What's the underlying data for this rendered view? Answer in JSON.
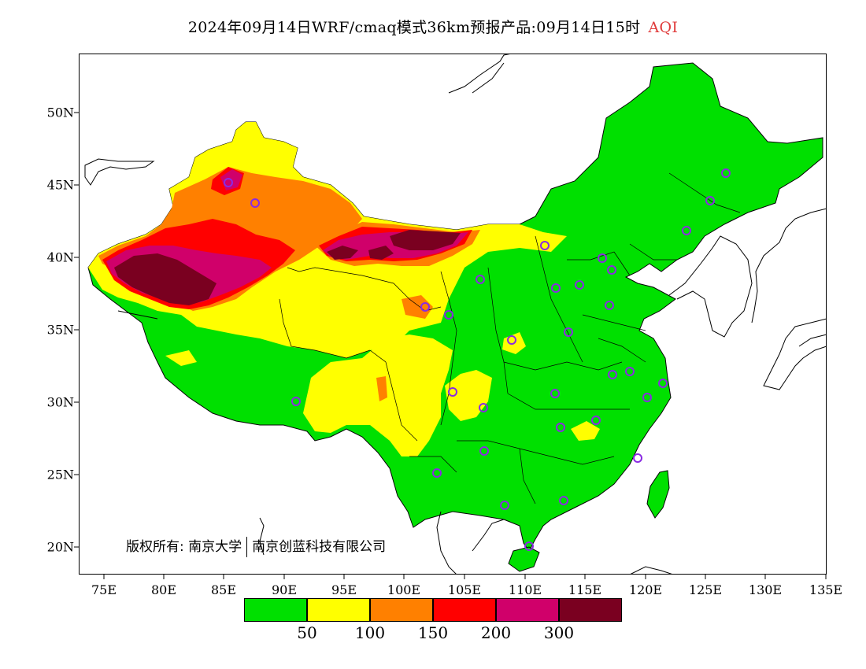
{
  "title": {
    "main": "2024年09月14日WRF/cmaq模式36km预报产品:09月14日15时",
    "variable": "AQI"
  },
  "lat_ticks": [
    "50N",
    "45N",
    "40N",
    "35N",
    "30N",
    "25N",
    "20N"
  ],
  "lon_ticks": [
    "75E",
    "80E",
    "85E",
    "90E",
    "95E",
    "100E",
    "105E",
    "110E",
    "115E",
    "120E",
    "125E",
    "130E",
    "135E"
  ],
  "legend": {
    "colors": [
      "#00e000",
      "#ffff00",
      "#ff8000",
      "#ff0000",
      "#d0006a",
      "#7a0020"
    ],
    "labels": [
      "50",
      "100",
      "150",
      "200",
      "300"
    ]
  },
  "copyright": {
    "prefix": "版权所有:",
    "org1": "南京大学",
    "org2": "南京创蓝科技有限公司"
  },
  "colors": {
    "green": "#00e000",
    "yellow": "#ffff00",
    "orange": "#ff8000",
    "red": "#ff0000",
    "magenta": "#d0006a",
    "maroon": "#7a0020",
    "station_marker": "#8a2be2",
    "title_accent": "#e03c3c"
  },
  "icons": {
    "station": "station-circle-icon"
  }
}
